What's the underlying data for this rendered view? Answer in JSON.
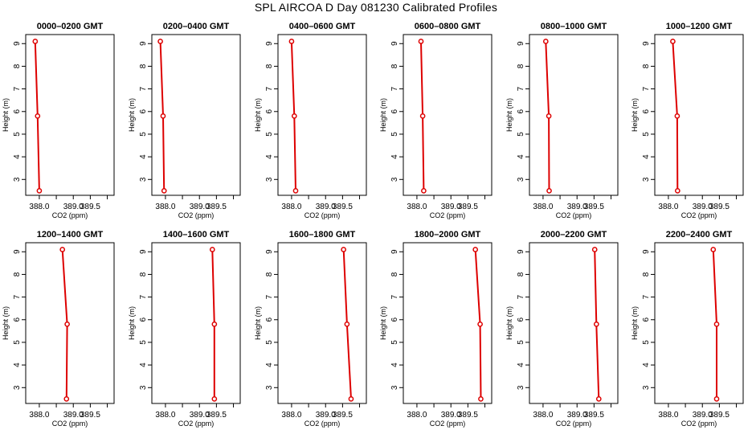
{
  "figure": {
    "title": "SPL AIRCOA D  Day 081230  Calibrated Profiles"
  },
  "chart_data": [
    {
      "type": "line",
      "title": "0000–0200 GMT",
      "xlabel": "CO2 (ppm)",
      "ylabel": "Height (m)",
      "xlim": [
        387.6,
        390.2
      ],
      "ylim": [
        2.3,
        9.4
      ],
      "xticks": [
        388.0,
        388.5,
        389.0,
        389.5,
        390.0
      ],
      "xticklabels": [
        "388.0",
        "",
        "389.0",
        "389.5",
        ""
      ],
      "yticks": [
        3,
        4,
        5,
        6,
        7,
        8,
        9
      ],
      "yticklabels": [
        "3",
        "4",
        "5",
        "6",
        "7",
        "8",
        "9"
      ],
      "x": [
        387.88,
        387.95,
        388.0
      ],
      "y": [
        9.1,
        5.8,
        2.5
      ],
      "color": "#dd0000"
    },
    {
      "type": "line",
      "title": "0200–0400 GMT",
      "xlabel": "CO2 (ppm)",
      "ylabel": "Height (m)",
      "xlim": [
        387.6,
        390.2
      ],
      "ylim": [
        2.3,
        9.4
      ],
      "xticks": [
        388.0,
        388.5,
        389.0,
        389.5,
        390.0
      ],
      "xticklabels": [
        "388.0",
        "",
        "389.0",
        "389.5",
        ""
      ],
      "yticks": [
        3,
        4,
        5,
        6,
        7,
        8,
        9
      ],
      "yticklabels": [
        "3",
        "4",
        "5",
        "6",
        "7",
        "8",
        "9"
      ],
      "x": [
        387.85,
        387.93,
        387.96
      ],
      "y": [
        9.1,
        5.8,
        2.5
      ],
      "color": "#dd0000"
    },
    {
      "type": "line",
      "title": "0400–0600 GMT",
      "xlabel": "CO2 (ppm)",
      "ylabel": "Height (m)",
      "xlim": [
        387.6,
        390.2
      ],
      "ylim": [
        2.3,
        9.4
      ],
      "xticks": [
        388.0,
        388.5,
        389.0,
        389.5,
        390.0
      ],
      "xticklabels": [
        "388.0",
        "",
        "389.0",
        "389.5",
        ""
      ],
      "yticks": [
        3,
        4,
        5,
        6,
        7,
        8,
        9
      ],
      "yticklabels": [
        "3",
        "4",
        "5",
        "6",
        "7",
        "8",
        "9"
      ],
      "x": [
        388.0,
        388.08,
        388.12
      ],
      "y": [
        9.1,
        5.8,
        2.5
      ],
      "color": "#dd0000"
    },
    {
      "type": "line",
      "title": "0600–0800 GMT",
      "xlabel": "CO2 (ppm)",
      "ylabel": "Height (m)",
      "xlim": [
        387.6,
        390.2
      ],
      "ylim": [
        2.3,
        9.4
      ],
      "xticks": [
        388.0,
        388.5,
        389.0,
        389.5,
        390.0
      ],
      "xticklabels": [
        "388.0",
        "",
        "389.0",
        "389.5",
        ""
      ],
      "yticks": [
        3,
        4,
        5,
        6,
        7,
        8,
        9
      ],
      "yticklabels": [
        "3",
        "4",
        "5",
        "6",
        "7",
        "8",
        "9"
      ],
      "x": [
        388.12,
        388.17,
        388.2
      ],
      "y": [
        9.1,
        5.8,
        2.5
      ],
      "color": "#dd0000"
    },
    {
      "type": "line",
      "title": "0800–1000 GMT",
      "xlabel": "CO2 (ppm)",
      "ylabel": "Height (m)",
      "xlim": [
        387.6,
        390.2
      ],
      "ylim": [
        2.3,
        9.4
      ],
      "xticks": [
        388.0,
        388.5,
        389.0,
        389.5,
        390.0
      ],
      "xticklabels": [
        "388.0",
        "",
        "389.0",
        "389.5",
        ""
      ],
      "yticks": [
        3,
        4,
        5,
        6,
        7,
        8,
        9
      ],
      "yticklabels": [
        "3",
        "4",
        "5",
        "6",
        "7",
        "8",
        "9"
      ],
      "x": [
        388.08,
        388.17,
        388.18
      ],
      "y": [
        9.1,
        5.8,
        2.5
      ],
      "color": "#dd0000"
    },
    {
      "type": "line",
      "title": "1000–1200 GMT",
      "xlabel": "CO2 (ppm)",
      "ylabel": "Height (m)",
      "xlim": [
        387.6,
        390.2
      ],
      "ylim": [
        2.3,
        9.4
      ],
      "xticks": [
        388.0,
        388.5,
        389.0,
        389.5,
        390.0
      ],
      "xticklabels": [
        "388.0",
        "",
        "389.0",
        "389.5",
        ""
      ],
      "yticks": [
        3,
        4,
        5,
        6,
        7,
        8,
        9
      ],
      "yticklabels": [
        "3",
        "4",
        "5",
        "6",
        "7",
        "8",
        "9"
      ],
      "x": [
        388.13,
        388.26,
        388.27
      ],
      "y": [
        9.1,
        5.8,
        2.5
      ],
      "color": "#dd0000"
    },
    {
      "type": "line",
      "title": "1200–1400 GMT",
      "xlabel": "CO2 (ppm)",
      "ylabel": "Height (m)",
      "xlim": [
        387.6,
        390.2
      ],
      "ylim": [
        2.3,
        9.4
      ],
      "xticks": [
        388.0,
        388.5,
        389.0,
        389.5,
        390.0
      ],
      "xticklabels": [
        "388.0",
        "",
        "389.0",
        "389.5",
        ""
      ],
      "yticks": [
        3,
        4,
        5,
        6,
        7,
        8,
        9
      ],
      "yticklabels": [
        "3",
        "4",
        "5",
        "6",
        "7",
        "8",
        "9"
      ],
      "x": [
        388.68,
        388.82,
        388.8
      ],
      "y": [
        9.1,
        5.8,
        2.5
      ],
      "color": "#dd0000"
    },
    {
      "type": "line",
      "title": "1400–1600 GMT",
      "xlabel": "CO2 (ppm)",
      "ylabel": "Height (m)",
      "xlim": [
        387.6,
        390.2
      ],
      "ylim": [
        2.3,
        9.4
      ],
      "xticks": [
        388.0,
        388.5,
        389.0,
        389.5,
        390.0
      ],
      "xticklabels": [
        "388.0",
        "",
        "389.0",
        "389.5",
        ""
      ],
      "yticks": [
        3,
        4,
        5,
        6,
        7,
        8,
        9
      ],
      "yticklabels": [
        "3",
        "4",
        "5",
        "6",
        "7",
        "8",
        "9"
      ],
      "x": [
        389.38,
        389.44,
        389.44
      ],
      "y": [
        9.1,
        5.8,
        2.5
      ],
      "color": "#dd0000"
    },
    {
      "type": "line",
      "title": "1600–1800 GMT",
      "xlabel": "CO2 (ppm)",
      "ylabel": "Height (m)",
      "xlim": [
        387.6,
        390.2
      ],
      "ylim": [
        2.3,
        9.4
      ],
      "xticks": [
        388.0,
        388.5,
        389.0,
        389.5,
        390.0
      ],
      "xticklabels": [
        "388.0",
        "",
        "389.0",
        "389.5",
        ""
      ],
      "yticks": [
        3,
        4,
        5,
        6,
        7,
        8,
        9
      ],
      "yticklabels": [
        "3",
        "4",
        "5",
        "6",
        "7",
        "8",
        "9"
      ],
      "x": [
        389.53,
        389.63,
        389.75
      ],
      "y": [
        9.1,
        5.8,
        2.5
      ],
      "color": "#dd0000"
    },
    {
      "type": "line",
      "title": "1800–2000 GMT",
      "xlabel": "CO2 (ppm)",
      "ylabel": "Height (m)",
      "xlim": [
        387.6,
        390.2
      ],
      "ylim": [
        2.3,
        9.4
      ],
      "xticks": [
        388.0,
        388.5,
        389.0,
        389.5,
        390.0
      ],
      "xticklabels": [
        "388.0",
        "",
        "389.0",
        "389.5",
        ""
      ],
      "yticks": [
        3,
        4,
        5,
        6,
        7,
        8,
        9
      ],
      "yticklabels": [
        "3",
        "4",
        "5",
        "6",
        "7",
        "8",
        "9"
      ],
      "x": [
        389.72,
        389.86,
        389.88
      ],
      "y": [
        9.1,
        5.8,
        2.5
      ],
      "color": "#dd0000"
    },
    {
      "type": "line",
      "title": "2000–2200 GMT",
      "xlabel": "CO2 (ppm)",
      "ylabel": "Height (m)",
      "xlim": [
        387.6,
        390.2
      ],
      "ylim": [
        2.3,
        9.4
      ],
      "xticks": [
        388.0,
        388.5,
        389.0,
        389.5,
        390.0
      ],
      "xticklabels": [
        "388.0",
        "",
        "389.0",
        "389.5",
        ""
      ],
      "yticks": [
        3,
        4,
        5,
        6,
        7,
        8,
        9
      ],
      "yticklabels": [
        "3",
        "4",
        "5",
        "6",
        "7",
        "8",
        "9"
      ],
      "x": [
        389.52,
        389.57,
        389.64
      ],
      "y": [
        9.1,
        5.8,
        2.5
      ],
      "color": "#dd0000"
    },
    {
      "type": "line",
      "title": "2200–2400 GMT",
      "xlabel": "CO2 (ppm)",
      "ylabel": "Height (m)",
      "xlim": [
        387.6,
        390.2
      ],
      "ylim": [
        2.3,
        9.4
      ],
      "xticks": [
        388.0,
        388.5,
        389.0,
        389.5,
        390.0
      ],
      "xticklabels": [
        "388.0",
        "",
        "389.0",
        "389.5",
        ""
      ],
      "yticks": [
        3,
        4,
        5,
        6,
        7,
        8,
        9
      ],
      "yticklabels": [
        "3",
        "4",
        "5",
        "6",
        "7",
        "8",
        "9"
      ],
      "x": [
        389.32,
        389.42,
        389.42
      ],
      "y": [
        9.1,
        5.8,
        2.5
      ],
      "color": "#dd0000"
    }
  ]
}
